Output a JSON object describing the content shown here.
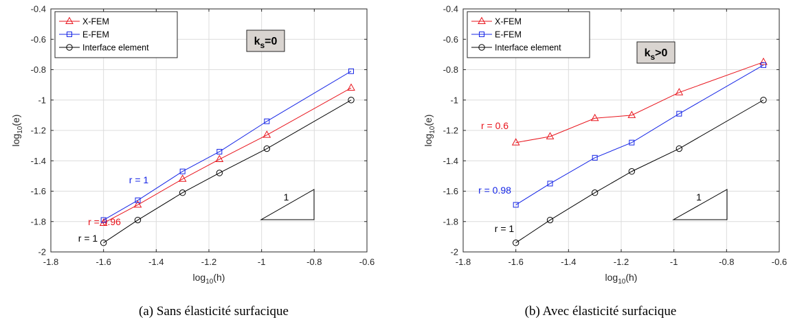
{
  "colors": {
    "xfem": "#e8131b",
    "efem": "#1424e6",
    "iface": "#000000",
    "grid": "#dcdcdc",
    "kbox_bg": "#d9d4d0"
  },
  "chart_data": [
    {
      "type": "line",
      "caption": "(a) Sans élasticité surfacique",
      "xlabel_main": "log",
      "xlabel_sub": "10",
      "xlabel_arg": "(h)",
      "ylabel_main": "log",
      "ylabel_sub": "10",
      "ylabel_arg": "(e)",
      "xlim": [
        -1.8,
        -0.6
      ],
      "ylim": [
        -2.0,
        -0.4
      ],
      "xticks": [
        "-1.8",
        "-1.6",
        "-1.4",
        "-1.2",
        "-1",
        "-0.8",
        "-0.6"
      ],
      "yticks": [
        "-2",
        "-1.8",
        "-1.6",
        "-1.4",
        "-1.2",
        "-1",
        "-0.8",
        "-0.6",
        "-0.4"
      ],
      "xtick_values": [
        -1.8,
        -1.6,
        -1.4,
        -1.2,
        -1.0,
        -0.8,
        -0.6
      ],
      "ytick_values": [
        -2.0,
        -1.8,
        -1.6,
        -1.4,
        -1.2,
        -1.0,
        -0.8,
        -0.6,
        -0.4
      ],
      "grid": true,
      "legend_placement": "top-left",
      "kbox": {
        "main": "k",
        "sub": "s",
        "rel": "=0"
      },
      "slope_label": "1",
      "series": [
        {
          "name": "X-FEM",
          "color_key": "xfem",
          "marker": "triangle",
          "x": [
            -1.6,
            -1.47,
            -1.3,
            -1.16,
            -0.98,
            -0.66
          ],
          "y": [
            -1.81,
            -1.69,
            -1.52,
            -1.39,
            -1.23,
            -0.92
          ],
          "rate_label": "r = 0.96"
        },
        {
          "name": "E-FEM",
          "color_key": "efem",
          "marker": "square",
          "x": [
            -1.6,
            -1.47,
            -1.3,
            -1.16,
            -0.98,
            -0.66
          ],
          "y": [
            -1.79,
            -1.66,
            -1.47,
            -1.34,
            -1.14,
            -0.81
          ],
          "rate_label": "r = 1"
        },
        {
          "name": "Interface element",
          "color_key": "iface",
          "marker": "circle",
          "x": [
            -1.6,
            -1.47,
            -1.3,
            -1.16,
            -0.98,
            -0.66
          ],
          "y": [
            -1.94,
            -1.79,
            -1.61,
            -1.48,
            -1.32,
            -1.0
          ],
          "rate_label": "r = 1"
        }
      ]
    },
    {
      "type": "line",
      "caption": "(b) Avec élasticité surfacique",
      "xlabel_main": "log",
      "xlabel_sub": "10",
      "xlabel_arg": "(h)",
      "ylabel_main": "log",
      "ylabel_sub": "10",
      "ylabel_arg": "(e)",
      "xlim": [
        -1.8,
        -0.6
      ],
      "ylim": [
        -2.0,
        -0.4
      ],
      "xticks": [
        "-1.8",
        "-1.6",
        "-1.4",
        "-1.2",
        "-1",
        "-0.8",
        "-0.6"
      ],
      "yticks": [
        "-2",
        "-1.8",
        "-1.6",
        "-1.4",
        "-1.2",
        "-1",
        "-0.8",
        "-0.6",
        "-0.4"
      ],
      "xtick_values": [
        -1.8,
        -1.6,
        -1.4,
        -1.2,
        -1.0,
        -0.8,
        -0.6
      ],
      "ytick_values": [
        -2.0,
        -1.8,
        -1.6,
        -1.4,
        -1.2,
        -1.0,
        -0.8,
        -0.6,
        -0.4
      ],
      "grid": true,
      "legend_placement": "top-left",
      "kbox": {
        "main": "k",
        "sub": "s",
        "rel": ">0"
      },
      "slope_label": "1",
      "series": [
        {
          "name": "X-FEM",
          "color_key": "xfem",
          "marker": "triangle",
          "x": [
            -1.6,
            -1.47,
            -1.3,
            -1.16,
            -0.98,
            -0.66
          ],
          "y": [
            -1.28,
            -1.24,
            -1.12,
            -1.1,
            -0.95,
            -0.75
          ],
          "rate_label": "r = 0.6"
        },
        {
          "name": "E-FEM",
          "color_key": "efem",
          "marker": "square",
          "x": [
            -1.6,
            -1.47,
            -1.3,
            -1.16,
            -0.98,
            -0.66
          ],
          "y": [
            -1.69,
            -1.55,
            -1.38,
            -1.28,
            -1.09,
            -0.77
          ],
          "rate_label": "r = 0.98"
        },
        {
          "name": "Interface element",
          "color_key": "iface",
          "marker": "circle",
          "x": [
            -1.6,
            -1.47,
            -1.3,
            -1.16,
            -0.98,
            -0.66
          ],
          "y": [
            -1.94,
            -1.79,
            -1.61,
            -1.47,
            -1.32,
            -1.0
          ],
          "rate_label": "r = 1"
        }
      ]
    }
  ]
}
